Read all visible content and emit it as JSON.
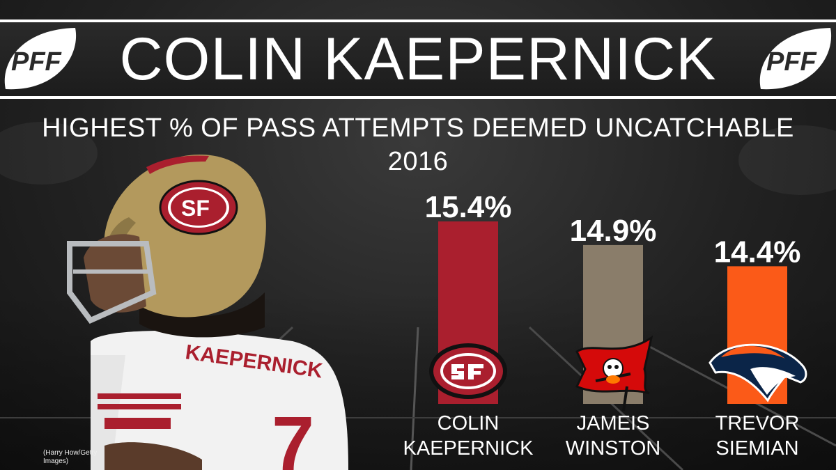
{
  "header": {
    "title": "COLIN KAEPERNICK",
    "logo_text": "PFF"
  },
  "subtitle": {
    "line1": "HIGHEST % OF PASS ATTEMPTS DEEMED UNCATCHABLE",
    "line2": "2016"
  },
  "photo": {
    "jersey_name": "KAEPERNICK",
    "jersey_number": "7",
    "helmet_logo": "SF",
    "credit": "(Harry How/Getty Images)"
  },
  "colors": {
    "background": "#222222",
    "header_band": "#1f1f1f",
    "niners_red": "#aa1f2e",
    "niners_gold": "#b3995d",
    "bucs_pewter": "#8a7d6a",
    "broncos_orange": "#fb5a18",
    "broncos_navy": "#0b2548"
  },
  "chart_data": {
    "type": "bar",
    "title": "HIGHEST % OF PASS ATTEMPTS DEEMED UNCATCHABLE",
    "subtitle": "2016",
    "categories": [
      "COLIN KAEPERNICK",
      "JAMEIS WINSTON",
      "TREVOR SIEMIAN"
    ],
    "name_lines": [
      [
        "COLIN",
        "KAEPERNICK"
      ],
      [
        "JAMEIS",
        "WINSTON"
      ],
      [
        "TREVOR",
        "SIEMIAN"
      ]
    ],
    "values": [
      15.4,
      14.9,
      14.4
    ],
    "value_labels": [
      "15.4%",
      "14.9%",
      "14.4%"
    ],
    "bar_colors": [
      "#aa1f2e",
      "#8a7d6a",
      "#fb5a18"
    ],
    "team_icons": [
      "49ers-logo-icon",
      "buccaneers-flag-icon",
      "broncos-horse-icon"
    ],
    "ylabel": "",
    "xlabel": "",
    "grid": false,
    "legend": "none"
  }
}
